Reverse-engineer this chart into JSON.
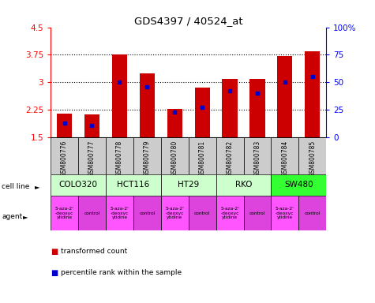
{
  "title": "GDS4397 / 40524_at",
  "samples": [
    "GSM800776",
    "GSM800777",
    "GSM800778",
    "GSM800779",
    "GSM800780",
    "GSM800781",
    "GSM800782",
    "GSM800783",
    "GSM800784",
    "GSM800785"
  ],
  "transformed_counts": [
    2.15,
    2.12,
    3.75,
    3.25,
    2.27,
    2.86,
    3.1,
    3.1,
    3.72,
    3.85
  ],
  "percentile_ranks": [
    13,
    11,
    50,
    46,
    23,
    27,
    42,
    40,
    50,
    55
  ],
  "ylim": [
    1.5,
    4.5
  ],
  "yticks": [
    1.5,
    2.25,
    3.0,
    3.75,
    4.5
  ],
  "yticklabels": [
    "1.5",
    "2.25",
    "3",
    "3.75",
    "4.5"
  ],
  "right_yticks": [
    0,
    25,
    50,
    75,
    100
  ],
  "right_yticklabels": [
    "0",
    "25",
    "50",
    "75",
    "100%"
  ],
  "bar_color": "#cc0000",
  "marker_color": "#0000cc",
  "cell_lines": [
    "COLO320",
    "HCT116",
    "HT29",
    "RKO",
    "SW480"
  ],
  "cell_line_spans": [
    [
      0,
      1
    ],
    [
      2,
      3
    ],
    [
      4,
      5
    ],
    [
      6,
      7
    ],
    [
      8,
      9
    ]
  ],
  "cell_line_colors": [
    "#ccffcc",
    "#ccffcc",
    "#ccffcc",
    "#ccffcc",
    "#33ff33"
  ],
  "agents": [
    "5-aza-2'\n-deoxyc\nytidine",
    "control",
    "5-aza-2'\n-deoxyc\nytidine",
    "control",
    "5-aza-2'\n-deoxyc\nytidine",
    "control",
    "5-aza-2'\n-deoxyc\nytidine",
    "control",
    "5-aza-2'\n-deoxyc\nytidine",
    "control"
  ],
  "agent_color_drug": "#ff55ff",
  "agent_color_control": "#dd44dd",
  "sample_bg_color": "#cccccc",
  "legend_red_label": "transformed count",
  "legend_blue_label": "percentile rank within the sample"
}
